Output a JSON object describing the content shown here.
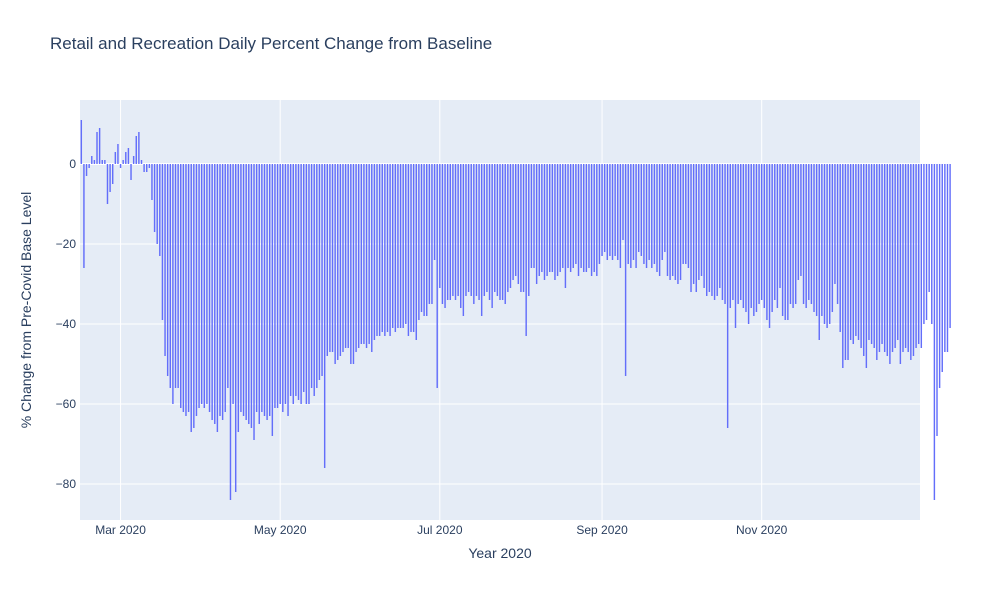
{
  "chart_data": {
    "type": "bar",
    "title": "Retail and Recreation Daily Percent Change from Baseline",
    "xlabel": "Year 2020",
    "ylabel": "% Change from Pre-Covid Base Level",
    "start_date": "2020-02-15",
    "xlim": [
      "2020-02-15",
      "2020-12-31"
    ],
    "ylim": [
      -89,
      16
    ],
    "x_ticks": [
      {
        "date": "2020-03-01",
        "label": "Mar 2020"
      },
      {
        "date": "2020-05-01",
        "label": "May 2020"
      },
      {
        "date": "2020-07-01",
        "label": "Jul 2020"
      },
      {
        "date": "2020-09-01",
        "label": "Sep 2020"
      },
      {
        "date": "2020-11-01",
        "label": "Nov 2020"
      }
    ],
    "y_ticks": [
      0,
      -20,
      -40,
      -60,
      -80
    ],
    "grid": true,
    "colors": {
      "bar": "#636efa",
      "plot_bg": "#e5ecf6",
      "grid": "#ffffff",
      "text": "#2a3f5f"
    },
    "values": [
      11,
      -26,
      -3,
      -1,
      2,
      1,
      8,
      9,
      1,
      1,
      -10,
      -7,
      -5,
      3,
      5,
      -1,
      1,
      3,
      4,
      -4,
      2,
      7,
      8,
      1,
      -2,
      -2,
      -1,
      -9,
      -17,
      -20,
      -23,
      -39,
      -48,
      -53,
      -56,
      -60,
      -56,
      -56,
      -61,
      -62,
      -63,
      -62,
      -67,
      -66,
      -63,
      -61,
      -60,
      -61,
      -60,
      -62,
      -64,
      -65,
      -67,
      -63,
      -64,
      -62,
      -56,
      -84,
      -60,
      -82,
      -67,
      -62,
      -63,
      -64,
      -65,
      -66,
      -69,
      -62,
      -65,
      -62,
      -63,
      -64,
      -63,
      -68,
      -61,
      -61,
      -60,
      -62,
      -60,
      -63,
      -58,
      -60,
      -58,
      -59,
      -60,
      -57,
      -60,
      -60,
      -56,
      -58,
      -56,
      -54,
      -53,
      -76,
      -48,
      -47,
      -47,
      -50,
      -49,
      -48,
      -47,
      -46,
      -46,
      -50,
      -50,
      -47,
      -46,
      -45,
      -45,
      -46,
      -45,
      -47,
      -44,
      -43,
      -43,
      -42,
      -43,
      -42,
      -43,
      -41,
      -42,
      -41,
      -41,
      -41,
      -40,
      -43,
      -42,
      -42,
      -44,
      -39,
      -37,
      -38,
      -38,
      -35,
      -35,
      -24,
      -56,
      -31,
      -35,
      -36,
      -34,
      -34,
      -33,
      -34,
      -33,
      -36,
      -38,
      -33,
      -32,
      -33,
      -35,
      -33,
      -34,
      -38,
      -33,
      -32,
      -34,
      -36,
      -32,
      -33,
      -34,
      -34,
      -35,
      -32,
      -31,
      -29,
      -28,
      -30,
      -32,
      -32,
      -43,
      -33,
      -26,
      -26,
      -30,
      -28,
      -27,
      -29,
      -28,
      -27,
      -27,
      -29,
      -28,
      -27,
      -26,
      -31,
      -26,
      -27,
      -26,
      -25,
      -28,
      -26,
      -27,
      -27,
      -26,
      -28,
      -27,
      -28,
      -25,
      -23,
      -22,
      -24,
      -23,
      -24,
      -23,
      -24,
      -26,
      -19,
      -53,
      -25,
      -26,
      -24,
      -26,
      -22,
      -23,
      -25,
      -26,
      -24,
      -26,
      -25,
      -27,
      -28,
      -24,
      -22,
      -28,
      -29,
      -28,
      -29,
      -30,
      -29,
      -25,
      -25,
      -26,
      -32,
      -30,
      -32,
      -29,
      -28,
      -31,
      -33,
      -32,
      -33,
      -34,
      -33,
      -31,
      -34,
      -35,
      -66,
      -36,
      -34,
      -41,
      -35,
      -34,
      -36,
      -37,
      -40,
      -36,
      -38,
      -37,
      -35,
      -34,
      -36,
      -39,
      -41,
      -37,
      -34,
      -36,
      -31,
      -38,
      -39,
      -39,
      -35,
      -36,
      -35,
      -29,
      -28,
      -35,
      -36,
      -34,
      -35,
      -37,
      -38,
      -44,
      -38,
      -40,
      -41,
      -40,
      -37,
      -30,
      -35,
      -42,
      -51,
      -49,
      -49,
      -44,
      -45,
      -43,
      -44,
      -46,
      -48,
      -51,
      -44,
      -45,
      -46,
      -49,
      -47,
      -45,
      -47,
      -48,
      -50,
      -47,
      -46,
      -44,
      -50,
      -47,
      -46,
      -47,
      -49,
      -48,
      -46,
      -45,
      -46,
      -40,
      -39,
      -32,
      -40,
      -84,
      -68,
      -56,
      -52,
      -47,
      -47,
      -41
    ]
  }
}
